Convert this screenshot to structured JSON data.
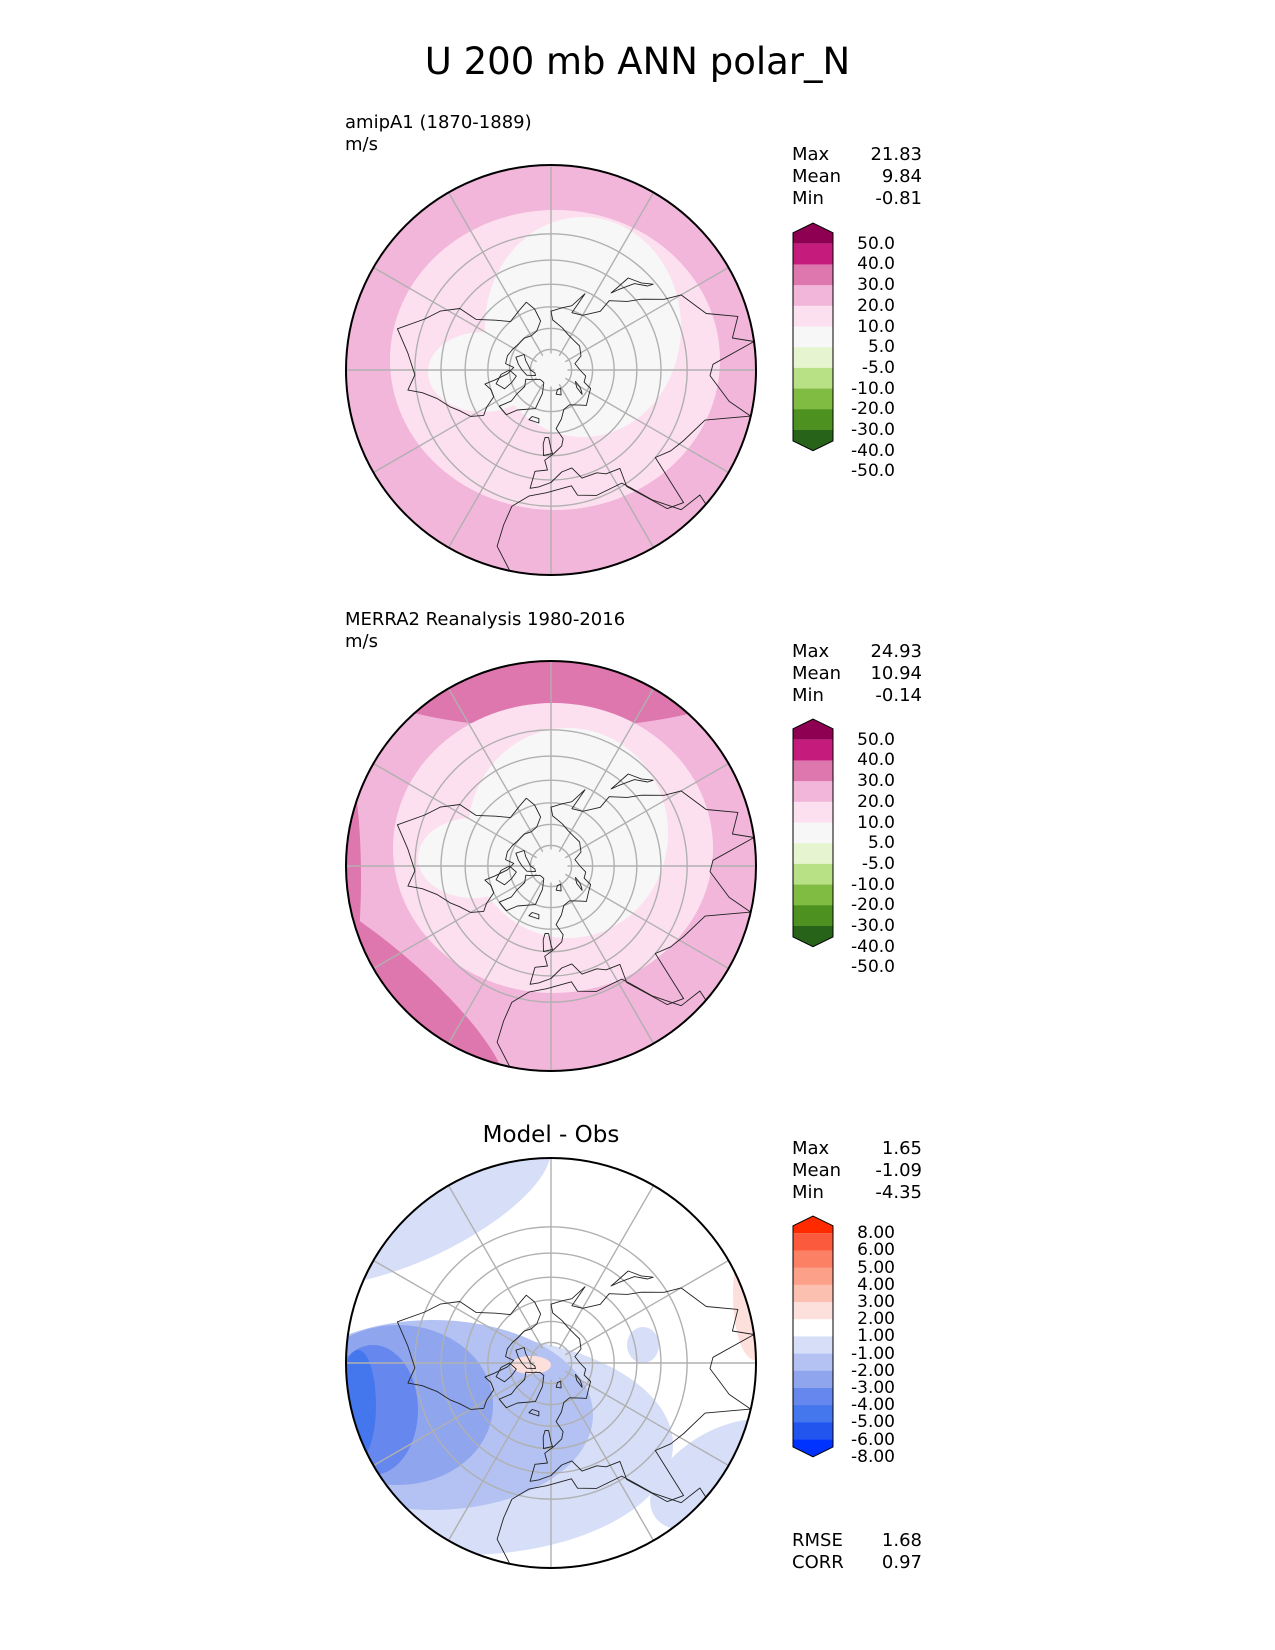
{
  "title": "U 200 mb ANN polar_N",
  "colors": {
    "diverging_seq": [
      "#276419",
      "#4d9221",
      "#7fbc41",
      "#b8e186",
      "#e6f5d0",
      "#f7f7f7",
      "#fde0ef",
      "#f1b6da",
      "#de77ae",
      "#c51b7d",
      "#8e0152"
    ],
    "diff_seq": [
      "#0033ff",
      "#2255ee",
      "#4477ee",
      "#6688ee",
      "#8fa6ee",
      "#b3c2f2",
      "#d6def8",
      "#ffffff",
      "#fde0dc",
      "#fcc0b0",
      "#fca08a",
      "#fc8064",
      "#fb5a3c",
      "#ff2a00"
    ]
  },
  "panels": [
    {
      "id": "model",
      "name": "amipA1 (1870-1889)",
      "units": "m/s",
      "stats": [
        {
          "label": "Max",
          "value": "21.83"
        },
        {
          "label": "Mean",
          "value": "9.84"
        },
        {
          "label": "Min",
          "value": "-0.81"
        }
      ],
      "colorbar_ticks": [
        "50.0",
        "40.0",
        "30.0",
        "20.0",
        "10.0",
        "5.0",
        "-5.0",
        "-10.0",
        "-20.0",
        "-30.0",
        "-40.0",
        "-50.0"
      ]
    },
    {
      "id": "obs",
      "name": "MERRA2 Reanalysis 1980-2016",
      "units": "m/s",
      "stats": [
        {
          "label": "Max",
          "value": "24.93"
        },
        {
          "label": "Mean",
          "value": "10.94"
        },
        {
          "label": "Min",
          "value": "-0.14"
        }
      ],
      "colorbar_ticks": [
        "50.0",
        "40.0",
        "30.0",
        "20.0",
        "10.0",
        "5.0",
        "-5.0",
        "-10.0",
        "-20.0",
        "-30.0",
        "-40.0",
        "-50.0"
      ]
    },
    {
      "id": "diff",
      "name": "Model - Obs",
      "stats": [
        {
          "label": "Max",
          "value": "1.65"
        },
        {
          "label": "Mean",
          "value": "-1.09"
        },
        {
          "label": "Min",
          "value": "-4.35"
        }
      ],
      "metrics": [
        {
          "label": "RMSE",
          "value": "1.68"
        },
        {
          "label": "CORR",
          "value": "0.97"
        }
      ],
      "colorbar_ticks": [
        "8.00",
        "6.00",
        "5.00",
        "4.00",
        "3.00",
        "2.00",
        "1.00",
        "-1.00",
        "-2.00",
        "-3.00",
        "-4.00",
        "-5.00",
        "-6.00",
        "-8.00"
      ]
    }
  ],
  "chart_data": [
    {
      "type": "heatmap",
      "projection": "north polar stereographic",
      "variable": "U",
      "level": "200 mb",
      "season": "ANN",
      "title": "amipA1 (1870-1889)",
      "units": "m/s",
      "levels": [
        -50,
        -40,
        -30,
        -20,
        -10,
        -5,
        5,
        10,
        20,
        30,
        40,
        50
      ],
      "max": 21.83,
      "mean": 9.84,
      "min": -0.81
    },
    {
      "type": "heatmap",
      "projection": "north polar stereographic",
      "variable": "U",
      "level": "200 mb",
      "season": "ANN",
      "title": "MERRA2 Reanalysis 1980-2016",
      "units": "m/s",
      "levels": [
        -50,
        -40,
        -30,
        -20,
        -10,
        -5,
        5,
        10,
        20,
        30,
        40,
        50
      ],
      "max": 24.93,
      "mean": 10.94,
      "min": -0.14
    },
    {
      "type": "heatmap",
      "projection": "north polar stereographic",
      "title": "Model - Obs",
      "levels": [
        -8,
        -6,
        -5,
        -4,
        -3,
        -2,
        -1,
        1,
        2,
        3,
        4,
        5,
        6,
        8
      ],
      "max": 1.65,
      "mean": -1.09,
      "min": -4.35,
      "rmse": 1.68,
      "corr": 0.97
    }
  ]
}
